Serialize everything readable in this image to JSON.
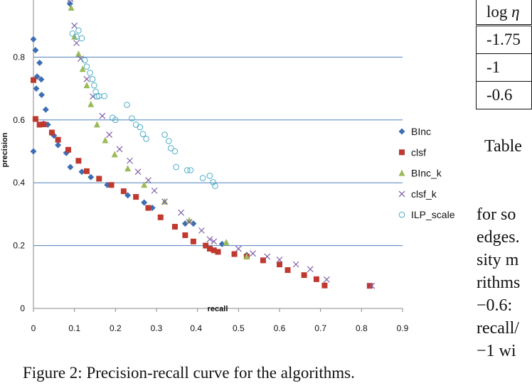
{
  "chart_data": {
    "type": "scatter",
    "xlabel": "recall",
    "ylabel": "precision",
    "xlim": [
      0,
      0.9
    ],
    "ylim": [
      0,
      0.9
    ],
    "x_ticks": [
      "0",
      "0.1",
      "0.2",
      "0.3",
      "0.4",
      "0.5",
      "0.6",
      "0.7",
      "0.8",
      "0.9"
    ],
    "y_ticks": [
      "0",
      "0.2",
      "0.4",
      "0.6",
      "0.8"
    ],
    "grid": "horizontal",
    "legend_position": "right",
    "series": [
      {
        "name": "BInc",
        "marker": "diamond",
        "color": "#3d6eb4",
        "points": [
          [
            0.0,
            0.857
          ],
          [
            0.005,
            0.822
          ],
          [
            0.015,
            0.782
          ],
          [
            0.009,
            0.738
          ],
          [
            0.019,
            0.729
          ],
          [
            0.007,
            0.7
          ],
          [
            0.02,
            0.68
          ],
          [
            0.03,
            0.633
          ],
          [
            0.025,
            0.588
          ],
          [
            0.035,
            0.585
          ],
          [
            0.0,
            0.5
          ],
          [
            0.05,
            0.55
          ],
          [
            0.06,
            0.52
          ],
          [
            0.08,
            0.495
          ],
          [
            0.09,
            0.45
          ],
          [
            0.118,
            0.435
          ],
          [
            0.14,
            0.418
          ],
          [
            0.18,
            0.393
          ],
          [
            0.23,
            0.36
          ],
          [
            0.27,
            0.337
          ],
          [
            0.29,
            0.32
          ],
          [
            0.37,
            0.27
          ],
          [
            0.39,
            0.27
          ],
          [
            0.46,
            0.205
          ],
          [
            0.52,
            0.17
          ],
          [
            0.089,
            0.97
          ]
        ]
      },
      {
        "name": "clsf",
        "marker": "square",
        "color": "#c0392f",
        "points": [
          [
            0.0,
            0.727
          ],
          [
            0.005,
            0.603
          ],
          [
            0.015,
            0.585
          ],
          [
            0.025,
            0.586
          ],
          [
            0.045,
            0.56
          ],
          [
            0.06,
            0.537
          ],
          [
            0.085,
            0.505
          ],
          [
            0.11,
            0.47
          ],
          [
            0.13,
            0.437
          ],
          [
            0.16,
            0.413
          ],
          [
            0.19,
            0.393
          ],
          [
            0.22,
            0.373
          ],
          [
            0.25,
            0.355
          ],
          [
            0.28,
            0.32
          ],
          [
            0.31,
            0.29
          ],
          [
            0.345,
            0.26
          ],
          [
            0.37,
            0.233
          ],
          [
            0.39,
            0.213
          ],
          [
            0.42,
            0.2
          ],
          [
            0.43,
            0.19
          ],
          [
            0.44,
            0.185
          ],
          [
            0.45,
            0.18
          ],
          [
            0.49,
            0.173
          ],
          [
            0.52,
            0.165
          ],
          [
            0.56,
            0.153
          ],
          [
            0.6,
            0.14
          ],
          [
            0.62,
            0.122
          ],
          [
            0.66,
            0.106
          ],
          [
            0.69,
            0.093
          ],
          [
            0.71,
            0.073
          ],
          [
            0.82,
            0.072
          ]
        ]
      },
      {
        "name": "BInc_k",
        "marker": "triangle",
        "color": "#9bbb59",
        "points": [
          [
            0.09,
            0.99
          ],
          [
            0.092,
            0.957
          ],
          [
            0.1,
            0.865
          ],
          [
            0.11,
            0.81
          ],
          [
            0.12,
            0.762
          ],
          [
            0.13,
            0.71
          ],
          [
            0.14,
            0.65
          ],
          [
            0.155,
            0.585
          ],
          [
            0.175,
            0.535
          ],
          [
            0.198,
            0.49
          ],
          [
            0.23,
            0.445
          ],
          [
            0.27,
            0.393
          ],
          [
            0.32,
            0.34
          ],
          [
            0.38,
            0.28
          ],
          [
            0.47,
            0.21
          ],
          [
            0.52,
            0.165
          ]
        ]
      },
      {
        "name": "clsf_k",
        "marker": "x",
        "color": "#7f5fa8",
        "points": [
          [
            0.09,
            0.985
          ],
          [
            0.1,
            0.9
          ],
          [
            0.105,
            0.845
          ],
          [
            0.115,
            0.795
          ],
          [
            0.13,
            0.73
          ],
          [
            0.145,
            0.675
          ],
          [
            0.168,
            0.613
          ],
          [
            0.185,
            0.553
          ],
          [
            0.21,
            0.507
          ],
          [
            0.235,
            0.47
          ],
          [
            0.255,
            0.435
          ],
          [
            0.28,
            0.408
          ],
          [
            0.295,
            0.375
          ],
          [
            0.32,
            0.34
          ],
          [
            0.36,
            0.305
          ],
          [
            0.38,
            0.275
          ],
          [
            0.41,
            0.248
          ],
          [
            0.43,
            0.22
          ],
          [
            0.44,
            0.213
          ],
          [
            0.5,
            0.19
          ],
          [
            0.535,
            0.175
          ],
          [
            0.57,
            0.165
          ],
          [
            0.6,
            0.155
          ],
          [
            0.64,
            0.14
          ],
          [
            0.675,
            0.125
          ],
          [
            0.715,
            0.092
          ],
          [
            0.825,
            0.072
          ]
        ]
      },
      {
        "name": "ILP_scale",
        "marker": "circle",
        "color": "#4bacc6",
        "points": [
          [
            0.095,
            0.875
          ],
          [
            0.105,
            0.865
          ],
          [
            0.11,
            0.885
          ],
          [
            0.118,
            0.86
          ],
          [
            0.125,
            0.79
          ],
          [
            0.13,
            0.77
          ],
          [
            0.138,
            0.75
          ],
          [
            0.144,
            0.73
          ],
          [
            0.148,
            0.71
          ],
          [
            0.152,
            0.69
          ],
          [
            0.155,
            0.675
          ],
          [
            0.16,
            0.676
          ],
          [
            0.173,
            0.676
          ],
          [
            0.193,
            0.607
          ],
          [
            0.2,
            0.6
          ],
          [
            0.228,
            0.648
          ],
          [
            0.24,
            0.605
          ],
          [
            0.25,
            0.585
          ],
          [
            0.26,
            0.577
          ],
          [
            0.267,
            0.555
          ],
          [
            0.275,
            0.54
          ],
          [
            0.32,
            0.553
          ],
          [
            0.33,
            0.533
          ],
          [
            0.335,
            0.51
          ],
          [
            0.345,
            0.5
          ],
          [
            0.348,
            0.45
          ],
          [
            0.375,
            0.44
          ],
          [
            0.383,
            0.44
          ],
          [
            0.413,
            0.415
          ],
          [
            0.43,
            0.422
          ],
          [
            0.438,
            0.402
          ],
          [
            0.443,
            0.39
          ]
        ]
      }
    ]
  },
  "caption": "Figure 2: Precision-recall curve for the algorithms.",
  "side_table": {
    "header_html": "log&nbsp;<i>η</i>",
    "rows": [
      "-1.75",
      "-1",
      "-0.6"
    ]
  },
  "side_fragments": {
    "table_label": "Table",
    "lines": [
      "for so",
      "edges.",
      "sity m",
      "rithms",
      "−0.6:",
      "recall/",
      "−1 wi"
    ]
  }
}
